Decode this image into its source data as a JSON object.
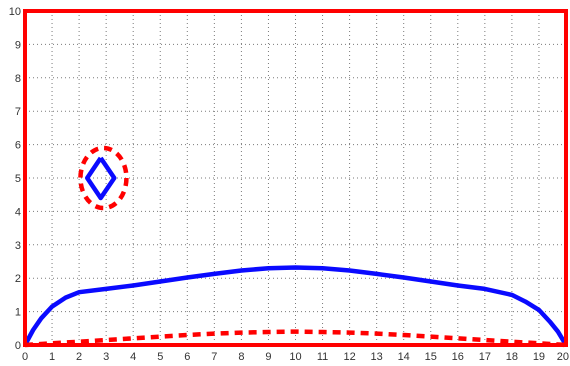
{
  "chart_data": {
    "type": "line",
    "title": "",
    "xlabel": "",
    "ylabel": "",
    "xlim": [
      0,
      20
    ],
    "ylim": [
      0,
      10
    ],
    "grid": true,
    "x_ticks": [
      "0",
      "1",
      "2",
      "3",
      "4",
      "5",
      "6",
      "7",
      "8",
      "9",
      "10",
      "11",
      "12",
      "13",
      "14",
      "15",
      "16",
      "17",
      "18",
      "19",
      "20"
    ],
    "y_ticks": [
      "0",
      "1",
      "2",
      "3",
      "4",
      "5",
      "6",
      "7",
      "8",
      "9",
      "10"
    ],
    "series": [
      {
        "color": "#0a0aff",
        "style": "solid",
        "x": [
          0,
          0.3,
          0.6,
          1,
          1.5,
          2,
          3,
          4,
          5,
          6,
          7,
          8,
          9,
          10,
          11,
          12,
          13,
          14,
          15,
          16,
          17,
          18,
          18.5,
          19,
          19.4,
          19.7,
          20
        ],
        "y": [
          0,
          0.45,
          0.8,
          1.15,
          1.42,
          1.58,
          1.68,
          1.78,
          1.9,
          2.02,
          2.13,
          2.23,
          2.3,
          2.32,
          2.3,
          2.23,
          2.13,
          2.02,
          1.9,
          1.78,
          1.68,
          1.5,
          1.3,
          1.05,
          0.7,
          0.4,
          0
        ]
      },
      {
        "color": "#ff0000",
        "style": "dashed",
        "x": [
          0,
          1,
          2,
          3,
          4,
          5,
          6,
          7,
          8,
          9,
          10,
          11,
          12,
          13,
          14,
          15,
          16,
          17,
          18,
          19,
          20
        ],
        "y": [
          0,
          0.05,
          0.1,
          0.15,
          0.2,
          0.25,
          0.3,
          0.34,
          0.37,
          0.39,
          0.4,
          0.39,
          0.37,
          0.34,
          0.3,
          0.25,
          0.2,
          0.15,
          0.1,
          0.05,
          0
        ]
      },
      {
        "color": "#0a0aff",
        "style": "solid",
        "shape": "diamond",
        "x": [
          2.8,
          3.3,
          2.8,
          2.3,
          2.8
        ],
        "y": [
          5.6,
          5.0,
          4.4,
          5.0,
          5.6
        ]
      },
      {
        "color": "#ff0000",
        "style": "dashed",
        "shape": "ellipse",
        "center": [
          2.9,
          5.0
        ],
        "radius_x": 0.85,
        "radius_y": 0.9
      }
    ],
    "frame_color": "#ff0000"
  }
}
